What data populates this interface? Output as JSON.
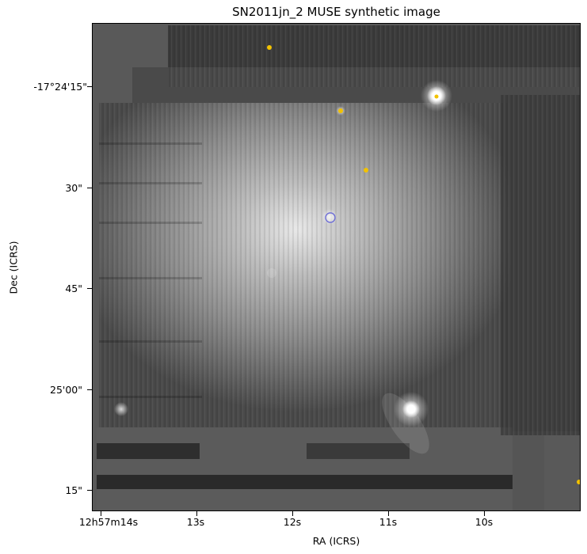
{
  "figure": {
    "title": "SN2011jn_2 MUSE synthetic image",
    "xlabel": "RA (ICRS)",
    "ylabel": "Dec (ICRS)",
    "yticks": [
      "-17°24'15\"",
      "30\"",
      "45\"",
      "25'00\"",
      "15\""
    ],
    "xticks": [
      "12h57m14s",
      "13s",
      "12s",
      "11s",
      "10s"
    ],
    "colormap": "grayscale",
    "marker_color": "#f2c200",
    "circle_color": "#6f6fd6"
  }
}
